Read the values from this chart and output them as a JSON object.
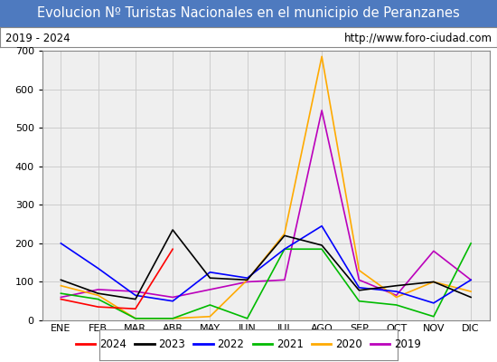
{
  "title": "Evolucion Nº Turistas Nacionales en el municipio de Peranzanes",
  "subtitle_left": "2019 - 2024",
  "subtitle_right": "http://www.foro-ciudad.com",
  "months": [
    "ENE",
    "FEB",
    "MAR",
    "ABR",
    "MAY",
    "JUN",
    "JUL",
    "AGO",
    "SEP",
    "OCT",
    "NOV",
    "DIC"
  ],
  "ylim": [
    0,
    700
  ],
  "yticks": [
    0,
    100,
    200,
    300,
    400,
    500,
    600,
    700
  ],
  "series": {
    "2024": {
      "color": "#ff0000",
      "values": [
        55,
        35,
        30,
        185,
        null,
        null,
        null,
        null,
        null,
        null,
        null,
        null
      ]
    },
    "2023": {
      "color": "#000000",
      "values": [
        105,
        70,
        55,
        235,
        110,
        105,
        220,
        195,
        78,
        90,
        100,
        60
      ]
    },
    "2022": {
      "color": "#0000ff",
      "values": [
        200,
        135,
        65,
        50,
        125,
        110,
        185,
        245,
        85,
        75,
        45,
        105
      ]
    },
    "2021": {
      "color": "#00bb00",
      "values": [
        70,
        55,
        5,
        5,
        40,
        5,
        185,
        185,
        50,
        40,
        10,
        200
      ]
    },
    "2020": {
      "color": "#ffaa00",
      "values": [
        90,
        65,
        5,
        5,
        10,
        105,
        225,
        685,
        130,
        60,
        100,
        75
      ]
    },
    "2019": {
      "color": "#bb00bb",
      "values": [
        60,
        80,
        75,
        60,
        80,
        100,
        105,
        545,
        105,
        65,
        180,
        105
      ]
    }
  },
  "title_bg_color": "#4e7abf",
  "title_color": "#ffffff",
  "title_fontsize": 10.5,
  "subtitle_fontsize": 8.5,
  "tick_fontsize": 8,
  "legend_fontsize": 8.5,
  "bg_color": "#ffffff",
  "plot_bg_color": "#efefef",
  "grid_color": "#cccccc",
  "border_color": "#888888"
}
